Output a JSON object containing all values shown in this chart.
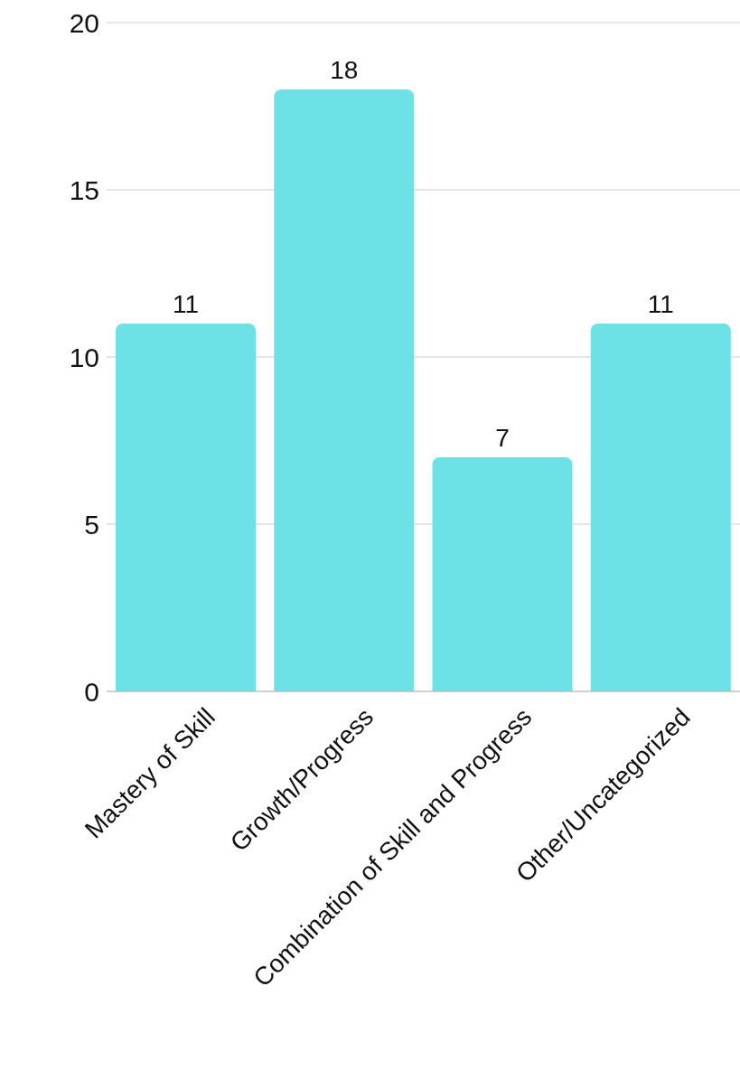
{
  "chart_data": {
    "type": "bar",
    "categories": [
      "Mastery of Skill",
      "Growth/Progress",
      "Combination of Skill and Progress",
      "Other/Uncategorized"
    ],
    "values": [
      11,
      18,
      7,
      11
    ],
    "color": "#6ce2e6",
    "ylim": [
      0,
      20
    ],
    "yticks": [
      0,
      5,
      10,
      15,
      20
    ],
    "grid": "y",
    "data_labels": true,
    "legend": false
  }
}
